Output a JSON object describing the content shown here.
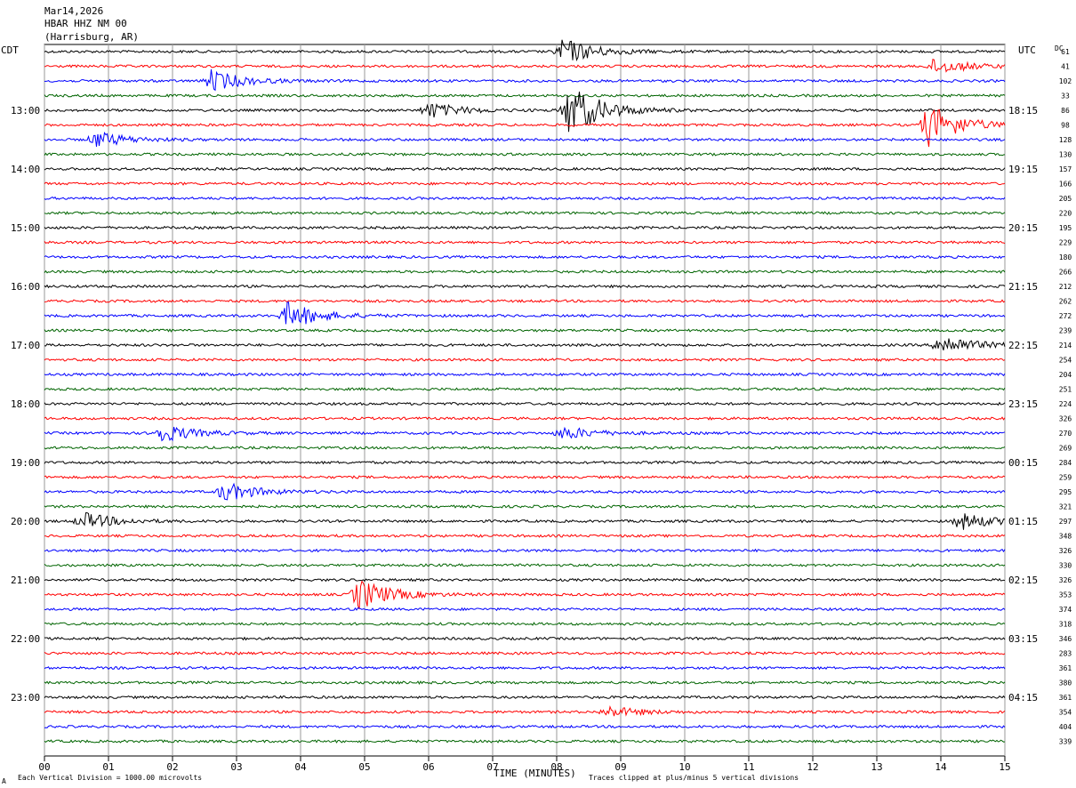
{
  "header": {
    "date": "Mar14,2026",
    "station": "HBAR HHZ NM 00",
    "location": "(Harrisburg, AR)",
    "left_tz": "CDT",
    "right_tz": "UTC",
    "dc_label": "DC"
  },
  "footer": {
    "scale_note": "Each Vertical Division = 1000.00 microvolts",
    "clip_note": "Traces clipped at plus/minus 5 vertical divisions",
    "corner_mark": "A"
  },
  "chart_data": {
    "type": "line",
    "title": "Mar14,2026 HBAR HHZ NM 00 (Harrisburg, AR)",
    "xlabel": "TIME (MINUTES)",
    "ylabel": "",
    "x_ticks": [
      "00",
      "01",
      "02",
      "03",
      "04",
      "05",
      "06",
      "07",
      "08",
      "09",
      "10",
      "11",
      "12",
      "13",
      "14",
      "15"
    ],
    "xlim": [
      0,
      15
    ],
    "grid": true,
    "trace_colors": [
      "#000000",
      "#ff0000",
      "#0000ff",
      "#006400"
    ],
    "left_hour_labels": [
      "13:00",
      "14:00",
      "15:00",
      "16:00",
      "17:00",
      "18:00",
      "19:00",
      "20:00",
      "21:00",
      "22:00",
      "23:00"
    ],
    "right_hour_labels": [
      "18:15",
      "19:15",
      "20:15",
      "21:15",
      "22:15",
      "23:15",
      "00:15",
      "01:15",
      "02:15",
      "03:15",
      "04:15"
    ],
    "dc_offsets": [
      61,
      41,
      102,
      33,
      86,
      98,
      128,
      130,
      157,
      166,
      205,
      220,
      195,
      229,
      180,
      266,
      212,
      262,
      272,
      239,
      214,
      254,
      204,
      251,
      224,
      326,
      270,
      269,
      284,
      259,
      295,
      321,
      297,
      348,
      326,
      330,
      326,
      353,
      374,
      318,
      346,
      283,
      361,
      380,
      361,
      354,
      404,
      339
    ],
    "trace_count": 48,
    "minutes_per_trace": 15,
    "events": [
      {
        "trace": 0,
        "minute": 8.1,
        "amp": 2.5
      },
      {
        "trace": 1,
        "minute": 13.9,
        "amp": 1.5
      },
      {
        "trace": 2,
        "minute": 2.6,
        "amp": 2.0
      },
      {
        "trace": 4,
        "minute": 8.2,
        "amp": 5.0
      },
      {
        "trace": 4,
        "minute": 6.0,
        "amp": 1.5
      },
      {
        "trace": 5,
        "minute": 13.8,
        "amp": 4.0
      },
      {
        "trace": 6,
        "minute": 0.8,
        "amp": 1.5
      },
      {
        "trace": 18,
        "minute": 3.8,
        "amp": 2.5
      },
      {
        "trace": 20,
        "minute": 14.0,
        "amp": 2.0
      },
      {
        "trace": 26,
        "minute": 1.8,
        "amp": 1.8
      },
      {
        "trace": 26,
        "minute": 8.1,
        "amp": 1.2
      },
      {
        "trace": 30,
        "minute": 2.8,
        "amp": 1.8
      },
      {
        "trace": 32,
        "minute": 0.6,
        "amp": 1.6
      },
      {
        "trace": 32,
        "minute": 14.3,
        "amp": 1.6
      },
      {
        "trace": 37,
        "minute": 4.9,
        "amp": 3.0
      },
      {
        "trace": 45,
        "minute": 8.8,
        "amp": 1.0
      }
    ]
  }
}
